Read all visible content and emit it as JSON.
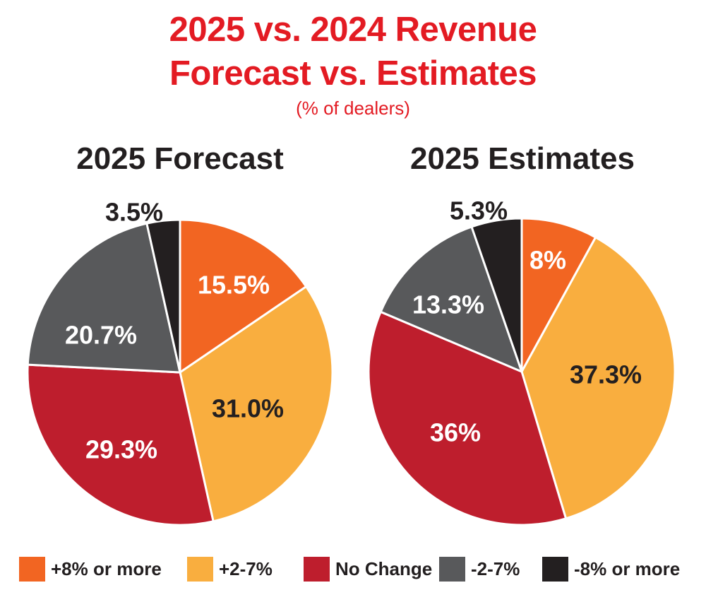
{
  "chart_title_line1": "2025 vs. 2024 Revenue",
  "chart_title_line2": "Forecast vs. Estimates",
  "subtitle": "(% of dealers)",
  "legend": [
    {
      "label": "+8% or more",
      "color": "#f26522"
    },
    {
      "label": "+2-7%",
      "color": "#f9ae3f"
    },
    {
      "label": "No Change",
      "color": "#be1e2d"
    },
    {
      "label": "-2-7%",
      "color": "#58595b"
    },
    {
      "label": "-8% or more",
      "color": "#231f20"
    }
  ],
  "chart_data": [
    {
      "type": "pie",
      "title": "2025 Forecast",
      "categories": [
        "+8% or more",
        "+2-7%",
        "No Change",
        "-2-7%",
        "-8% or more"
      ],
      "values": [
        15.5,
        31.0,
        29.3,
        20.7,
        3.5
      ],
      "labels": [
        "15.5%",
        "31.0%",
        "29.3%",
        "20.7%",
        "3.5%"
      ],
      "label_colors": [
        "#ffffff",
        "#231f20",
        "#ffffff",
        "#ffffff",
        "#231f20"
      ]
    },
    {
      "type": "pie",
      "title": "2025 Estimates",
      "categories": [
        "+8% or more",
        "+2-7%",
        "No Change",
        "-2-7%",
        "-8% or more"
      ],
      "values": [
        8,
        37.3,
        36,
        13.3,
        5.3
      ],
      "labels": [
        "8%",
        "37.3%",
        "36%",
        "13.3%",
        "5.3%"
      ],
      "label_colors": [
        "#ffffff",
        "#231f20",
        "#ffffff",
        "#ffffff",
        "#231f20"
      ]
    }
  ]
}
